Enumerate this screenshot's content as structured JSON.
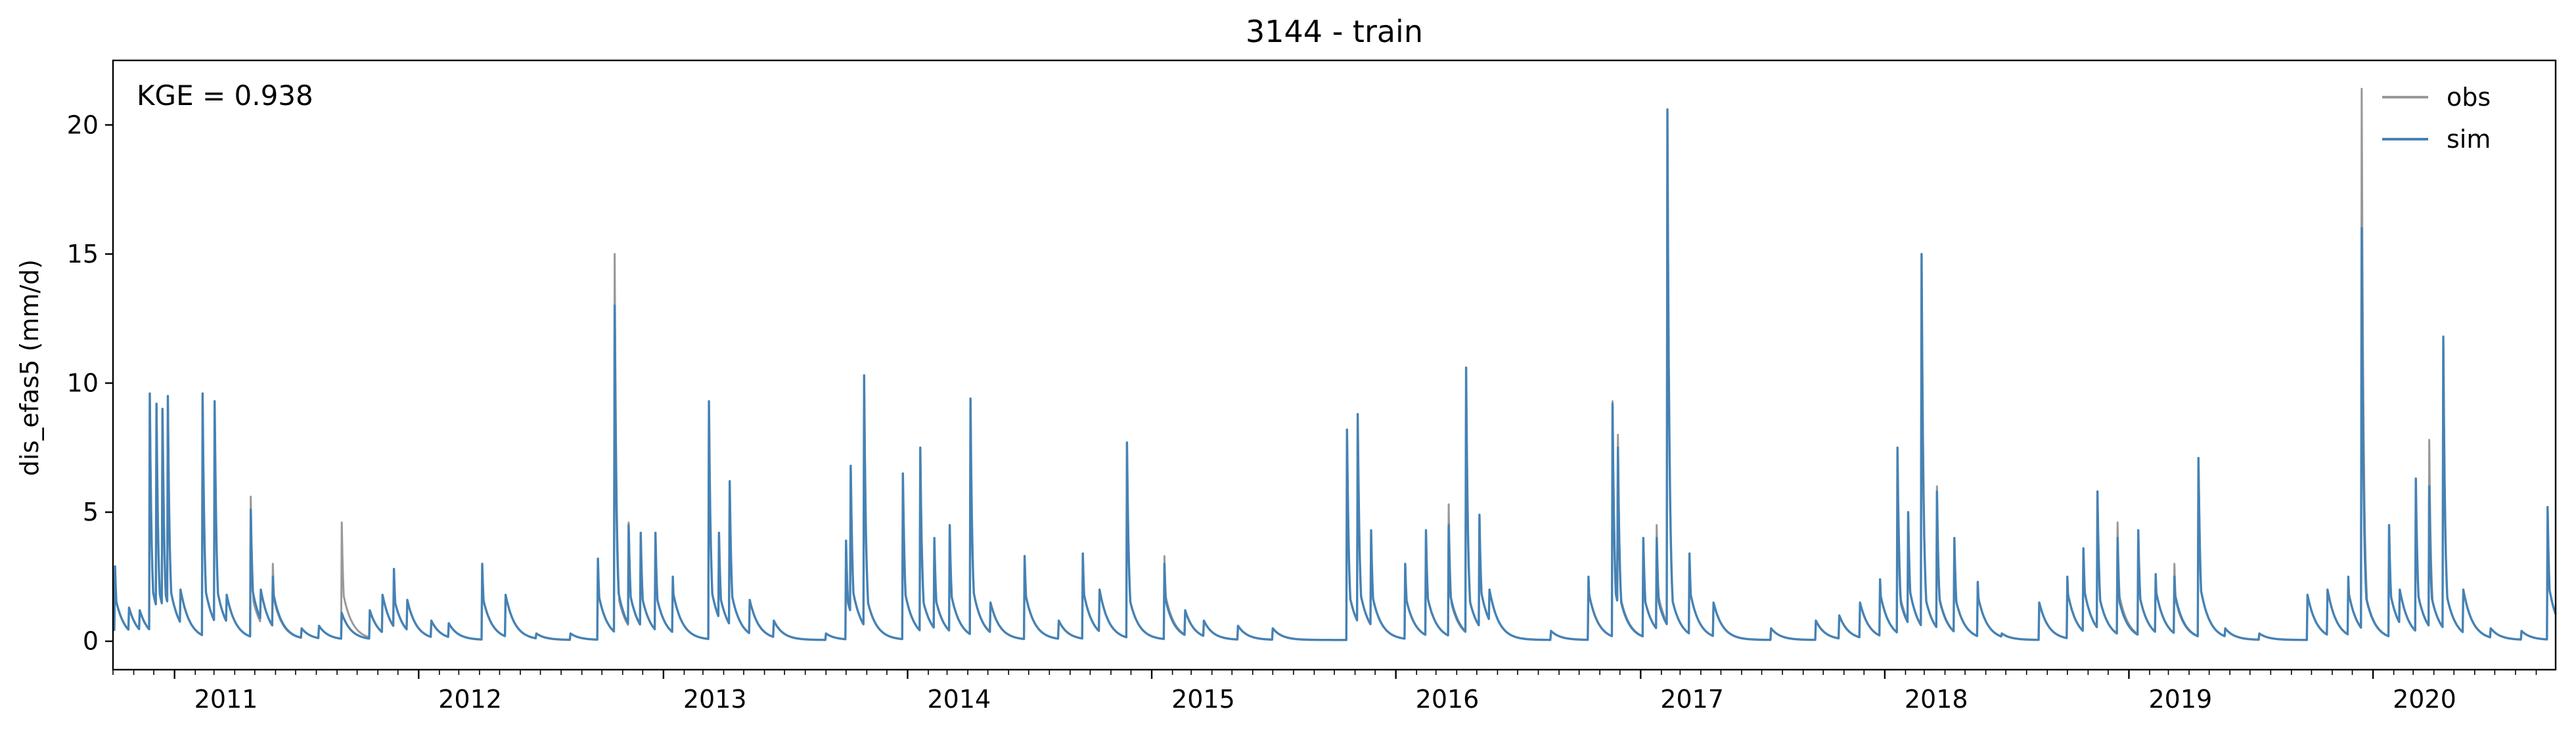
{
  "chart_data": {
    "type": "line",
    "title": "3144 - train",
    "xlabel": "",
    "ylabel": "dis_efas5 (mm/d)",
    "xlim": [
      "2010-10-01",
      "2020-09-30"
    ],
    "ylim": [
      -1.1,
      22.5
    ],
    "yticks": [
      0,
      5,
      10,
      15,
      20
    ],
    "xticks": [
      {
        "date": "2011-01-01",
        "label": "2011"
      },
      {
        "date": "2012-01-01",
        "label": "2012"
      },
      {
        "date": "2013-01-01",
        "label": "2013"
      },
      {
        "date": "2014-01-01",
        "label": "2014"
      },
      {
        "date": "2015-01-01",
        "label": "2015"
      },
      {
        "date": "2016-01-01",
        "label": "2016"
      },
      {
        "date": "2017-01-01",
        "label": "2017"
      },
      {
        "date": "2018-01-01",
        "label": "2018"
      },
      {
        "date": "2019-01-01",
        "label": "2019"
      },
      {
        "date": "2020-01-01",
        "label": "2020"
      }
    ],
    "annotation": "KGE = 0.938",
    "legend_position": "top-right",
    "grid": false,
    "series": [
      {
        "name": "obs",
        "color": "#999999",
        "peaks": [
          [
            "2010-10-04",
            2.9
          ],
          [
            "2010-10-25",
            1.3
          ],
          [
            "2010-11-10",
            1.2
          ],
          [
            "2010-11-25",
            9.6
          ],
          [
            "2010-12-05",
            9.2
          ],
          [
            "2010-12-14",
            9.0
          ],
          [
            "2010-12-22",
            9.5
          ],
          [
            "2011-01-10",
            2.0
          ],
          [
            "2011-02-12",
            9.6
          ],
          [
            "2011-03-02",
            9.3
          ],
          [
            "2011-03-20",
            1.8
          ],
          [
            "2011-04-25",
            5.6
          ],
          [
            "2011-05-10",
            2.0
          ],
          [
            "2011-05-28",
            3.0
          ],
          [
            "2011-07-10",
            0.5
          ],
          [
            "2011-08-05",
            0.6
          ],
          [
            "2011-09-08",
            4.6
          ],
          [
            "2011-10-20",
            1.2
          ],
          [
            "2011-11-08",
            1.8
          ],
          [
            "2011-11-25",
            2.8
          ],
          [
            "2011-12-15",
            1.6
          ],
          [
            "2012-01-20",
            0.8
          ],
          [
            "2012-02-15",
            0.7
          ],
          [
            "2012-04-05",
            3.0
          ],
          [
            "2012-05-10",
            1.8
          ],
          [
            "2012-06-25",
            0.3
          ],
          [
            "2012-08-15",
            0.3
          ],
          [
            "2012-09-25",
            3.2
          ],
          [
            "2012-10-20",
            15.0
          ],
          [
            "2012-11-10",
            4.6
          ],
          [
            "2012-11-28",
            4.2
          ],
          [
            "2012-12-20",
            4.2
          ],
          [
            "2013-01-15",
            2.5
          ],
          [
            "2013-03-10",
            9.3
          ],
          [
            "2013-03-25",
            4.2
          ],
          [
            "2013-04-10",
            6.2
          ],
          [
            "2013-05-10",
            1.6
          ],
          [
            "2013-06-15",
            0.8
          ],
          [
            "2013-09-01",
            0.3
          ],
          [
            "2013-10-01",
            3.9
          ],
          [
            "2013-10-08",
            6.8
          ],
          [
            "2013-10-28",
            10.3
          ],
          [
            "2013-12-25",
            6.5
          ],
          [
            "2014-01-20",
            7.5
          ],
          [
            "2014-02-10",
            4.0
          ],
          [
            "2014-03-05",
            4.5
          ],
          [
            "2014-04-05",
            9.4
          ],
          [
            "2014-05-05",
            1.5
          ],
          [
            "2014-06-25",
            3.3
          ],
          [
            "2014-08-15",
            0.8
          ],
          [
            "2014-09-20",
            3.4
          ],
          [
            "2014-10-15",
            2.0
          ],
          [
            "2014-11-25",
            7.7
          ],
          [
            "2015-01-20",
            3.3
          ],
          [
            "2015-02-20",
            1.2
          ],
          [
            "2015-03-20",
            0.8
          ],
          [
            "2015-05-10",
            0.6
          ],
          [
            "2015-07-01",
            0.5
          ],
          [
            "2015-10-20",
            8.2
          ],
          [
            "2015-11-05",
            8.8
          ],
          [
            "2015-11-25",
            4.3
          ],
          [
            "2016-01-15",
            3.0
          ],
          [
            "2016-02-15",
            4.3
          ],
          [
            "2016-03-20",
            5.3
          ],
          [
            "2016-04-15",
            10.6
          ],
          [
            "2016-05-05",
            4.9
          ],
          [
            "2016-05-20",
            2.0
          ],
          [
            "2016-08-20",
            0.4
          ],
          [
            "2016-10-15",
            2.5
          ],
          [
            "2016-11-20",
            9.3
          ],
          [
            "2016-11-28",
            8.0
          ],
          [
            "2017-01-05",
            4.0
          ],
          [
            "2017-01-25",
            4.5
          ],
          [
            "2017-02-10",
            20.6
          ],
          [
            "2017-03-15",
            3.4
          ],
          [
            "2017-04-20",
            1.5
          ],
          [
            "2017-07-15",
            0.5
          ],
          [
            "2017-09-20",
            0.8
          ],
          [
            "2017-10-25",
            1.0
          ],
          [
            "2017-11-25",
            1.5
          ],
          [
            "2017-12-25",
            2.4
          ],
          [
            "2018-01-20",
            6.4
          ],
          [
            "2018-02-05",
            5.0
          ],
          [
            "2018-02-25",
            15.0
          ],
          [
            "2018-03-20",
            6.0
          ],
          [
            "2018-04-15",
            4.0
          ],
          [
            "2018-05-20",
            2.3
          ],
          [
            "2018-06-25",
            0.3
          ],
          [
            "2018-08-20",
            1.5
          ],
          [
            "2018-10-01",
            2.5
          ],
          [
            "2018-10-25",
            3.6
          ],
          [
            "2018-11-15",
            5.8
          ],
          [
            "2018-12-15",
            4.6
          ],
          [
            "2019-01-15",
            4.3
          ],
          [
            "2019-02-10",
            2.6
          ],
          [
            "2019-03-10",
            3.0
          ],
          [
            "2019-04-15",
            7.1
          ],
          [
            "2019-05-25",
            0.5
          ],
          [
            "2019-07-15",
            0.3
          ],
          [
            "2019-09-25",
            1.8
          ],
          [
            "2019-10-25",
            2.0
          ],
          [
            "2019-11-25",
            2.5
          ],
          [
            "2019-12-15",
            21.4
          ],
          [
            "2020-01-25",
            4.5
          ],
          [
            "2020-02-10",
            2.0
          ],
          [
            "2020-03-05",
            6.3
          ],
          [
            "2020-03-25",
            7.8
          ],
          [
            "2020-04-15",
            11.8
          ],
          [
            "2020-05-15",
            2.0
          ],
          [
            "2020-06-25",
            0.5
          ],
          [
            "2020-08-10",
            0.4
          ],
          [
            "2020-09-18",
            5.2
          ],
          [
            "2020-09-27",
            1.2
          ]
        ]
      },
      {
        "name": "sim",
        "color": "#4682b4",
        "peaks": [
          [
            "2010-10-04",
            2.9
          ],
          [
            "2010-10-25",
            1.3
          ],
          [
            "2010-11-10",
            1.2
          ],
          [
            "2010-11-25",
            9.6
          ],
          [
            "2010-12-05",
            9.2
          ],
          [
            "2010-12-14",
            9.0
          ],
          [
            "2010-12-22",
            9.5
          ],
          [
            "2011-01-10",
            2.0
          ],
          [
            "2011-02-12",
            9.6
          ],
          [
            "2011-03-02",
            9.3
          ],
          [
            "2011-03-20",
            1.8
          ],
          [
            "2011-04-25",
            5.1
          ],
          [
            "2011-05-10",
            2.0
          ],
          [
            "2011-05-28",
            2.5
          ],
          [
            "2011-07-10",
            0.5
          ],
          [
            "2011-08-05",
            0.6
          ],
          [
            "2011-09-08",
            1.1
          ],
          [
            "2011-10-20",
            1.2
          ],
          [
            "2011-11-08",
            1.8
          ],
          [
            "2011-11-25",
            2.8
          ],
          [
            "2011-12-15",
            1.6
          ],
          [
            "2012-01-20",
            0.8
          ],
          [
            "2012-02-15",
            0.7
          ],
          [
            "2012-04-05",
            3.0
          ],
          [
            "2012-05-10",
            1.8
          ],
          [
            "2012-06-25",
            0.3
          ],
          [
            "2012-08-15",
            0.3
          ],
          [
            "2012-09-25",
            3.2
          ],
          [
            "2012-10-20",
            13.0
          ],
          [
            "2012-11-10",
            4.5
          ],
          [
            "2012-11-28",
            4.2
          ],
          [
            "2012-12-20",
            4.2
          ],
          [
            "2013-01-15",
            2.5
          ],
          [
            "2013-03-10",
            9.3
          ],
          [
            "2013-03-25",
            4.2
          ],
          [
            "2013-04-10",
            6.2
          ],
          [
            "2013-05-10",
            1.6
          ],
          [
            "2013-06-15",
            0.8
          ],
          [
            "2013-09-01",
            0.3
          ],
          [
            "2013-10-01",
            3.9
          ],
          [
            "2013-10-08",
            6.8
          ],
          [
            "2013-10-28",
            10.3
          ],
          [
            "2013-12-25",
            6.5
          ],
          [
            "2014-01-20",
            7.5
          ],
          [
            "2014-02-10",
            4.0
          ],
          [
            "2014-03-05",
            4.5
          ],
          [
            "2014-04-05",
            9.4
          ],
          [
            "2014-05-05",
            1.5
          ],
          [
            "2014-06-25",
            3.3
          ],
          [
            "2014-08-15",
            0.8
          ],
          [
            "2014-09-20",
            3.4
          ],
          [
            "2014-10-15",
            2.0
          ],
          [
            "2014-11-25",
            7.7
          ],
          [
            "2015-01-20",
            3.0
          ],
          [
            "2015-02-20",
            1.2
          ],
          [
            "2015-03-20",
            0.8
          ],
          [
            "2015-05-10",
            0.6
          ],
          [
            "2015-07-01",
            0.5
          ],
          [
            "2015-10-20",
            8.2
          ],
          [
            "2015-11-05",
            8.8
          ],
          [
            "2015-11-25",
            4.3
          ],
          [
            "2016-01-15",
            3.0
          ],
          [
            "2016-02-15",
            4.3
          ],
          [
            "2016-03-20",
            4.5
          ],
          [
            "2016-04-15",
            10.6
          ],
          [
            "2016-05-05",
            4.9
          ],
          [
            "2016-05-20",
            2.0
          ],
          [
            "2016-08-20",
            0.4
          ],
          [
            "2016-10-15",
            2.5
          ],
          [
            "2016-11-20",
            9.2
          ],
          [
            "2016-11-28",
            7.5
          ],
          [
            "2017-01-05",
            4.0
          ],
          [
            "2017-01-25",
            4.0
          ],
          [
            "2017-02-10",
            20.6
          ],
          [
            "2017-03-15",
            3.4
          ],
          [
            "2017-04-20",
            1.5
          ],
          [
            "2017-07-15",
            0.5
          ],
          [
            "2017-09-20",
            0.8
          ],
          [
            "2017-10-25",
            1.0
          ],
          [
            "2017-11-25",
            1.5
          ],
          [
            "2017-12-25",
            2.4
          ],
          [
            "2018-01-20",
            7.5
          ],
          [
            "2018-02-05",
            5.0
          ],
          [
            "2018-02-25",
            15.0
          ],
          [
            "2018-03-20",
            5.8
          ],
          [
            "2018-04-15",
            4.0
          ],
          [
            "2018-05-20",
            2.3
          ],
          [
            "2018-06-25",
            0.3
          ],
          [
            "2018-08-20",
            1.5
          ],
          [
            "2018-10-01",
            2.5
          ],
          [
            "2018-10-25",
            3.6
          ],
          [
            "2018-11-15",
            5.8
          ],
          [
            "2018-12-15",
            4.0
          ],
          [
            "2019-01-15",
            4.3
          ],
          [
            "2019-02-10",
            2.6
          ],
          [
            "2019-03-10",
            2.5
          ],
          [
            "2019-04-15",
            7.1
          ],
          [
            "2019-05-25",
            0.5
          ],
          [
            "2019-07-15",
            0.3
          ],
          [
            "2019-09-25",
            1.8
          ],
          [
            "2019-10-25",
            2.0
          ],
          [
            "2019-11-25",
            2.5
          ],
          [
            "2019-12-15",
            16.0
          ],
          [
            "2020-01-25",
            4.5
          ],
          [
            "2020-02-10",
            2.0
          ],
          [
            "2020-03-05",
            6.3
          ],
          [
            "2020-03-25",
            6.0
          ],
          [
            "2020-04-15",
            11.8
          ],
          [
            "2020-05-15",
            2.0
          ],
          [
            "2020-06-25",
            0.5
          ],
          [
            "2020-08-10",
            0.4
          ],
          [
            "2020-09-18",
            5.2
          ],
          [
            "2020-09-27",
            1.2
          ]
        ]
      }
    ]
  }
}
